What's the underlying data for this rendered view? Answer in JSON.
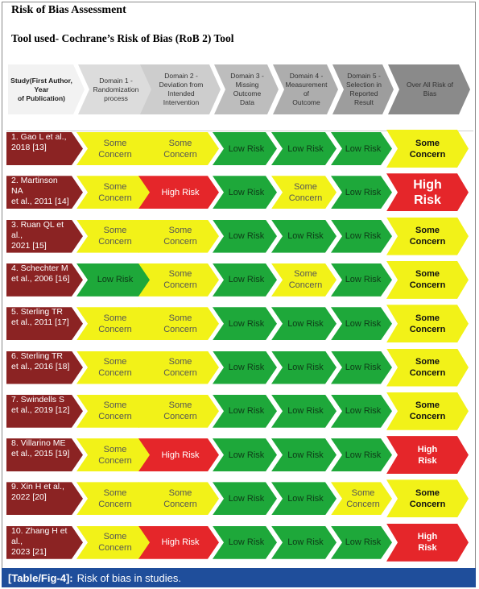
{
  "title": "Risk of Bias Assessment",
  "tool_line": "Tool used- Cochrane’s Risk of Bias (RoB 2) Tool",
  "headers": [
    {
      "lines": [
        "Study(First Author, Year",
        "of Publication)"
      ],
      "color": "#f2f2f2",
      "bold": true
    },
    {
      "lines": [
        "Domain 1 -",
        "Randomization",
        "process"
      ],
      "color": "#dcdcdc"
    },
    {
      "lines": [
        "Domain 2 -",
        "Deviation from",
        "Intended",
        "Intervention"
      ],
      "color": "#cdcdcd"
    },
    {
      "lines": [
        "Domain 3 -",
        "Missing Outcome",
        "Data"
      ],
      "color": "#bdbdbd"
    },
    {
      "lines": [
        "Domain 4 -",
        "Measurement of",
        "Outcome"
      ],
      "color": "#adadad"
    },
    {
      "lines": [
        "Domain 5 -",
        "Selection in",
        "Reported Result"
      ],
      "color": "#9d9d9d"
    },
    {
      "lines": [
        "Over All Risk of",
        "Bias"
      ],
      "color": "#8a8a8a"
    }
  ],
  "colors": {
    "study": "#8b2323",
    "some": "#f2f218",
    "low": "#1ea83a",
    "high": "#e5262a"
  },
  "rows": [
    {
      "study": [
        "1. Gao L et al.,",
        "2018 [13]"
      ],
      "domains": [
        "some",
        "some",
        "low",
        "low",
        "low"
      ],
      "overall": "some"
    },
    {
      "study": [
        "2. Martinson NA",
        "et al., 2011 [14]"
      ],
      "domains": [
        "some",
        "high",
        "low",
        "some",
        "low"
      ],
      "overall": "high",
      "big": true
    },
    {
      "study": [
        "3. Ruan QL et al.,",
        "2021 [15]"
      ],
      "domains": [
        "some",
        "some",
        "low",
        "low",
        "low"
      ],
      "overall": "some"
    },
    {
      "study": [
        "4. Schechter M",
        "et al., 2006 [16]"
      ],
      "domains": [
        "low",
        "some",
        "low",
        "some",
        "low"
      ],
      "overall": "some"
    },
    {
      "study": [
        "5. Sterling TR",
        "et al., 2011 [17]"
      ],
      "domains": [
        "some",
        "some",
        "low",
        "low",
        "low"
      ],
      "overall": "some"
    },
    {
      "study": [
        "6. Sterling TR",
        "et al., 2016 [18]"
      ],
      "domains": [
        "some",
        "some",
        "low",
        "low",
        "low"
      ],
      "overall": "some"
    },
    {
      "study": [
        "7. Swindells S",
        "et al., 2019 [12]"
      ],
      "domains": [
        "some",
        "some",
        "low",
        "low",
        "low"
      ],
      "overall": "some"
    },
    {
      "study": [
        "8. Villarino ME",
        "et al., 2015 [19]"
      ],
      "domains": [
        "some",
        "high",
        "low",
        "low",
        "low"
      ],
      "overall": "high"
    },
    {
      "study": [
        "9. Xin H et al.,",
        "2022 [20]"
      ],
      "domains": [
        "some",
        "some",
        "low",
        "low",
        "some"
      ],
      "overall": "some"
    },
    {
      "study": [
        "10. Zhang H et al.,",
        "2023 [21]"
      ],
      "domains": [
        "some",
        "high",
        "low",
        "low",
        "low"
      ],
      "overall": "high"
    }
  ],
  "labels": {
    "some": [
      "Some",
      "Concern"
    ],
    "low": [
      "Low Risk"
    ],
    "high": [
      "High Risk"
    ],
    "overall_high": [
      "High",
      "Risk"
    ]
  },
  "caption": {
    "label": "[Table/Fig-4]:",
    "text": "Risk of bias in studies."
  }
}
